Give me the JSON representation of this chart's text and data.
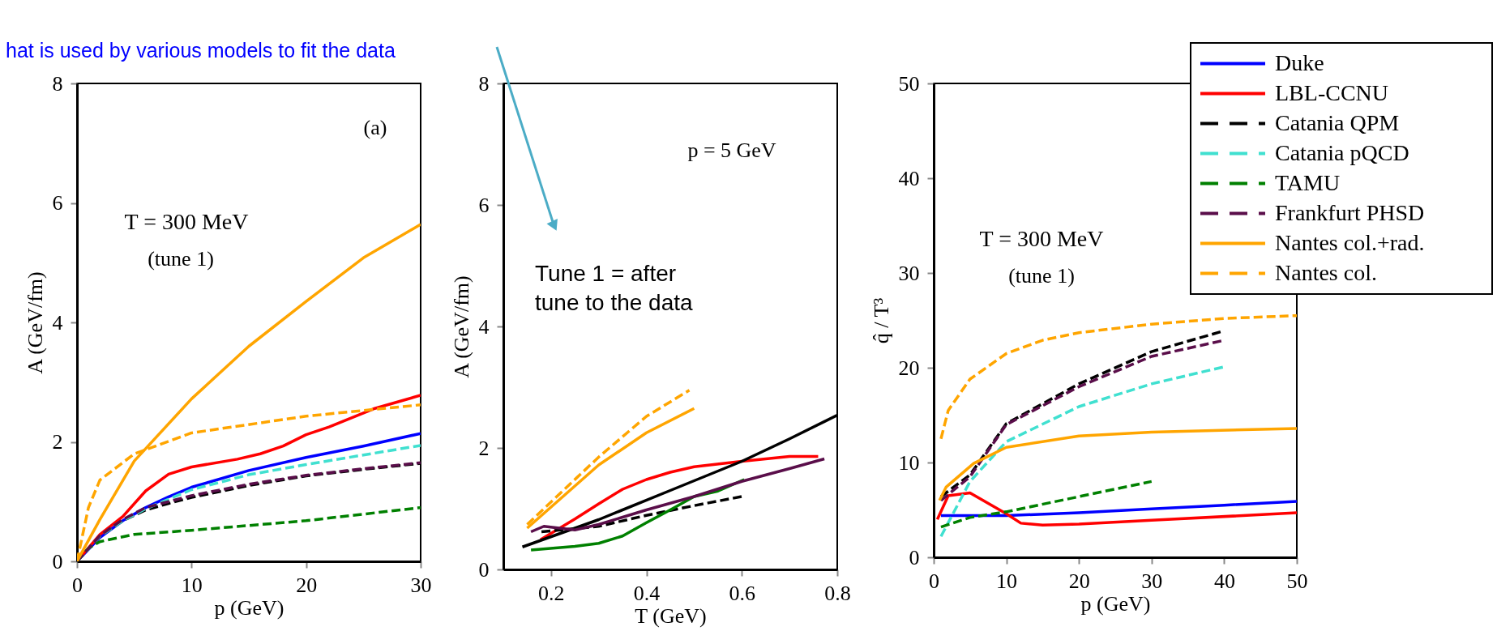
{
  "chart_data": [
    {
      "type": "line",
      "xlabel": "p (GeV)",
      "ylabel": "A (GeV/fm)",
      "xlim": [
        0,
        30
      ],
      "ylim": [
        0,
        8
      ],
      "xticks": [
        0,
        10,
        20,
        30
      ],
      "yticks": [
        0,
        2,
        4,
        6,
        8
      ],
      "annotations": [
        "hat is used by various models to fit the data",
        "(a)",
        "T = 300 MeV",
        "(tune 1)"
      ],
      "series": [
        {
          "color": "#0000ff",
          "line_style": "solid",
          "x": [
            0,
            2,
            4,
            6,
            8,
            10,
            15,
            20,
            25,
            30
          ],
          "values": [
            0,
            0.4,
            0.68,
            0.9,
            1.08,
            1.24,
            1.52,
            1.74,
            1.93,
            2.14
          ]
        },
        {
          "color": "#ff0000",
          "line_style": "solid",
          "x": [
            0,
            2,
            4,
            6,
            8,
            10,
            14,
            16,
            18,
            20,
            22,
            26,
            30
          ],
          "values": [
            0,
            0.45,
            0.75,
            1.18,
            1.46,
            1.58,
            1.71,
            1.8,
            1.93,
            2.12,
            2.25,
            2.56,
            2.78
          ]
        },
        {
          "color": "#000000",
          "line_style": "dashed",
          "x": [
            0,
            2,
            4,
            6,
            8,
            10,
            15,
            20,
            25,
            30
          ],
          "values": [
            0,
            0.42,
            0.68,
            0.86,
            0.97,
            1.07,
            1.27,
            1.43,
            1.54,
            1.64
          ]
        },
        {
          "color": "#40e0d0",
          "line_style": "dashed",
          "x": [
            0,
            2,
            4,
            6,
            8,
            10,
            15,
            20,
            25,
            30
          ],
          "values": [
            0,
            0.42,
            0.68,
            0.88,
            1.04,
            1.2,
            1.45,
            1.62,
            1.78,
            1.94
          ]
        },
        {
          "color": "#008000",
          "line_style": "dashed",
          "x": [
            0,
            1,
            2,
            5,
            10,
            20,
            30
          ],
          "values": [
            0,
            0.22,
            0.33,
            0.45,
            0.52,
            0.68,
            0.9
          ]
        },
        {
          "color": "#5a0e4a",
          "line_style": "dashed",
          "x": [
            0,
            2,
            4,
            6,
            8,
            10,
            15,
            20,
            25,
            30
          ],
          "values": [
            0,
            0.43,
            0.7,
            0.9,
            1.0,
            1.1,
            1.29,
            1.44,
            1.55,
            1.65
          ]
        },
        {
          "color": "#ffa500",
          "line_style": "solid",
          "x": [
            0,
            2,
            5,
            10,
            15,
            20,
            25,
            30
          ],
          "values": [
            0,
            0.7,
            1.68,
            2.72,
            3.6,
            4.35,
            5.08,
            5.64
          ]
        },
        {
          "color": "#ffa500",
          "line_style": "dashed",
          "x": [
            0,
            1,
            2,
            5,
            10,
            20,
            30
          ],
          "values": [
            0,
            0.9,
            1.36,
            1.8,
            2.15,
            2.43,
            2.62
          ]
        }
      ]
    },
    {
      "type": "line",
      "xlabel": "T (GeV)",
      "ylabel": "A (GeV/fm)",
      "xlim": [
        0.1,
        0.8
      ],
      "ylim": [
        0,
        8
      ],
      "xticks": [
        0.2,
        0.4,
        0.6,
        0.8
      ],
      "yticks": [
        0,
        2,
        4,
        6,
        8
      ],
      "annotations": [
        "p = 5 GeV",
        "Tune 1 = after\ntune to the data"
      ],
      "series": [
        {
          "color": "#ff0000",
          "line_style": "solid",
          "x": [
            0.178,
            0.25,
            0.3,
            0.35,
            0.4,
            0.45,
            0.5,
            0.6,
            0.7,
            0.76
          ],
          "values": [
            0.49,
            0.83,
            1.08,
            1.32,
            1.48,
            1.6,
            1.69,
            1.78,
            1.86,
            1.86
          ]
        },
        {
          "color": "#000000",
          "line_style": "solid",
          "x": [
            0.14,
            0.3,
            0.45,
            0.6,
            0.7,
            0.8
          ],
          "values": [
            0.37,
            0.82,
            1.3,
            1.78,
            2.15,
            2.54
          ]
        },
        {
          "color": "#000000",
          "line_style": "dashed",
          "x": [
            0.18,
            0.3,
            0.4,
            0.5,
            0.6
          ],
          "values": [
            0.62,
            0.71,
            0.89,
            1.05,
            1.2
          ]
        },
        {
          "color": "#008000",
          "line_style": "solid",
          "x": [
            0.158,
            0.25,
            0.3,
            0.35,
            0.4,
            0.45,
            0.5,
            0.55,
            0.605
          ],
          "values": [
            0.32,
            0.38,
            0.43,
            0.55,
            0.77,
            0.98,
            1.2,
            1.29,
            1.48
          ]
        },
        {
          "color": "#5a0e4a",
          "line_style": "solid",
          "x": [
            0.158,
            0.185,
            0.25,
            0.3,
            0.4,
            0.5,
            0.6,
            0.7,
            0.773
          ],
          "values": [
            0.62,
            0.71,
            0.65,
            0.74,
            0.98,
            1.2,
            1.45,
            1.66,
            1.82
          ]
        },
        {
          "color": "#ffa500",
          "line_style": "solid",
          "x": [
            0.15,
            0.3,
            0.4,
            0.5
          ],
          "values": [
            0.68,
            1.72,
            2.25,
            2.65
          ]
        },
        {
          "color": "#ffa500",
          "line_style": "dashed",
          "x": [
            0.15,
            0.3,
            0.4,
            0.49
          ],
          "values": [
            0.74,
            1.85,
            2.52,
            2.95
          ]
        }
      ]
    },
    {
      "type": "line",
      "xlabel": "p (GeV)",
      "ylabel": "q̂ / T³",
      "xlim": [
        0,
        50
      ],
      "ylim": [
        0,
        50
      ],
      "xticks": [
        0,
        10,
        20,
        30,
        40,
        50
      ],
      "yticks": [
        0,
        10,
        20,
        30,
        40,
        50
      ],
      "legend": "top right",
      "annotations": [
        "T = 300 MeV",
        "(tune 1)"
      ],
      "series": [
        {
          "name": "Duke",
          "color": "#0000ff",
          "line_style": "solid",
          "x": [
            1,
            10,
            20,
            30,
            40,
            50
          ],
          "values": [
            4.4,
            4.4,
            4.7,
            5.1,
            5.5,
            5.9
          ]
        },
        {
          "name": "LBL-CCNU",
          "color": "#ff0000",
          "line_style": "solid",
          "x": [
            0.5,
            2,
            5,
            10,
            12,
            15,
            20,
            30,
            50
          ],
          "values": [
            4,
            6.5,
            6.8,
            4.6,
            3.6,
            3.4,
            3.5,
            3.9,
            4.7
          ]
        },
        {
          "name": "Catania QPM",
          "color": "#000000",
          "line_style": "dashed",
          "x": [
            1,
            5,
            10,
            20,
            30,
            40
          ],
          "values": [
            6.4,
            8.7,
            14.1,
            18.3,
            21.7,
            23.9
          ]
        },
        {
          "name": "Catania pQCD",
          "color": "#40e0d0",
          "line_style": "dashed",
          "x": [
            1,
            5,
            10,
            20,
            30,
            40
          ],
          "values": [
            2.2,
            8,
            12.2,
            15.9,
            18.3,
            20.1
          ]
        },
        {
          "name": "TAMU",
          "color": "#008000",
          "line_style": "dashed",
          "x": [
            1,
            5,
            10,
            20,
            30
          ],
          "values": [
            3.2,
            4.2,
            4.8,
            6.4,
            8
          ]
        },
        {
          "name": "Frankfurt PHSD",
          "color": "#5a0e4a",
          "line_style": "dashed",
          "x": [
            1,
            5,
            10,
            20,
            30,
            40
          ],
          "values": [
            6,
            8.5,
            14,
            18,
            21.2,
            22.9
          ]
        },
        {
          "name": "Nantes col.+rad.",
          "color": "#ffa500",
          "line_style": "solid",
          "x": [
            0.8,
            1.7,
            5.5,
            10,
            20,
            30,
            50
          ],
          "values": [
            6,
            7.4,
            9.9,
            11.6,
            12.8,
            13.2,
            13.6
          ]
        },
        {
          "name": "Nantes col.",
          "color": "#ffa500",
          "line_style": "dashed",
          "x": [
            1,
            2,
            5,
            10,
            15,
            20,
            30,
            40,
            50
          ],
          "values": [
            12.5,
            15.5,
            18.8,
            21.5,
            22.9,
            23.7,
            24.6,
            25.2,
            25.5
          ]
        }
      ]
    }
  ]
}
